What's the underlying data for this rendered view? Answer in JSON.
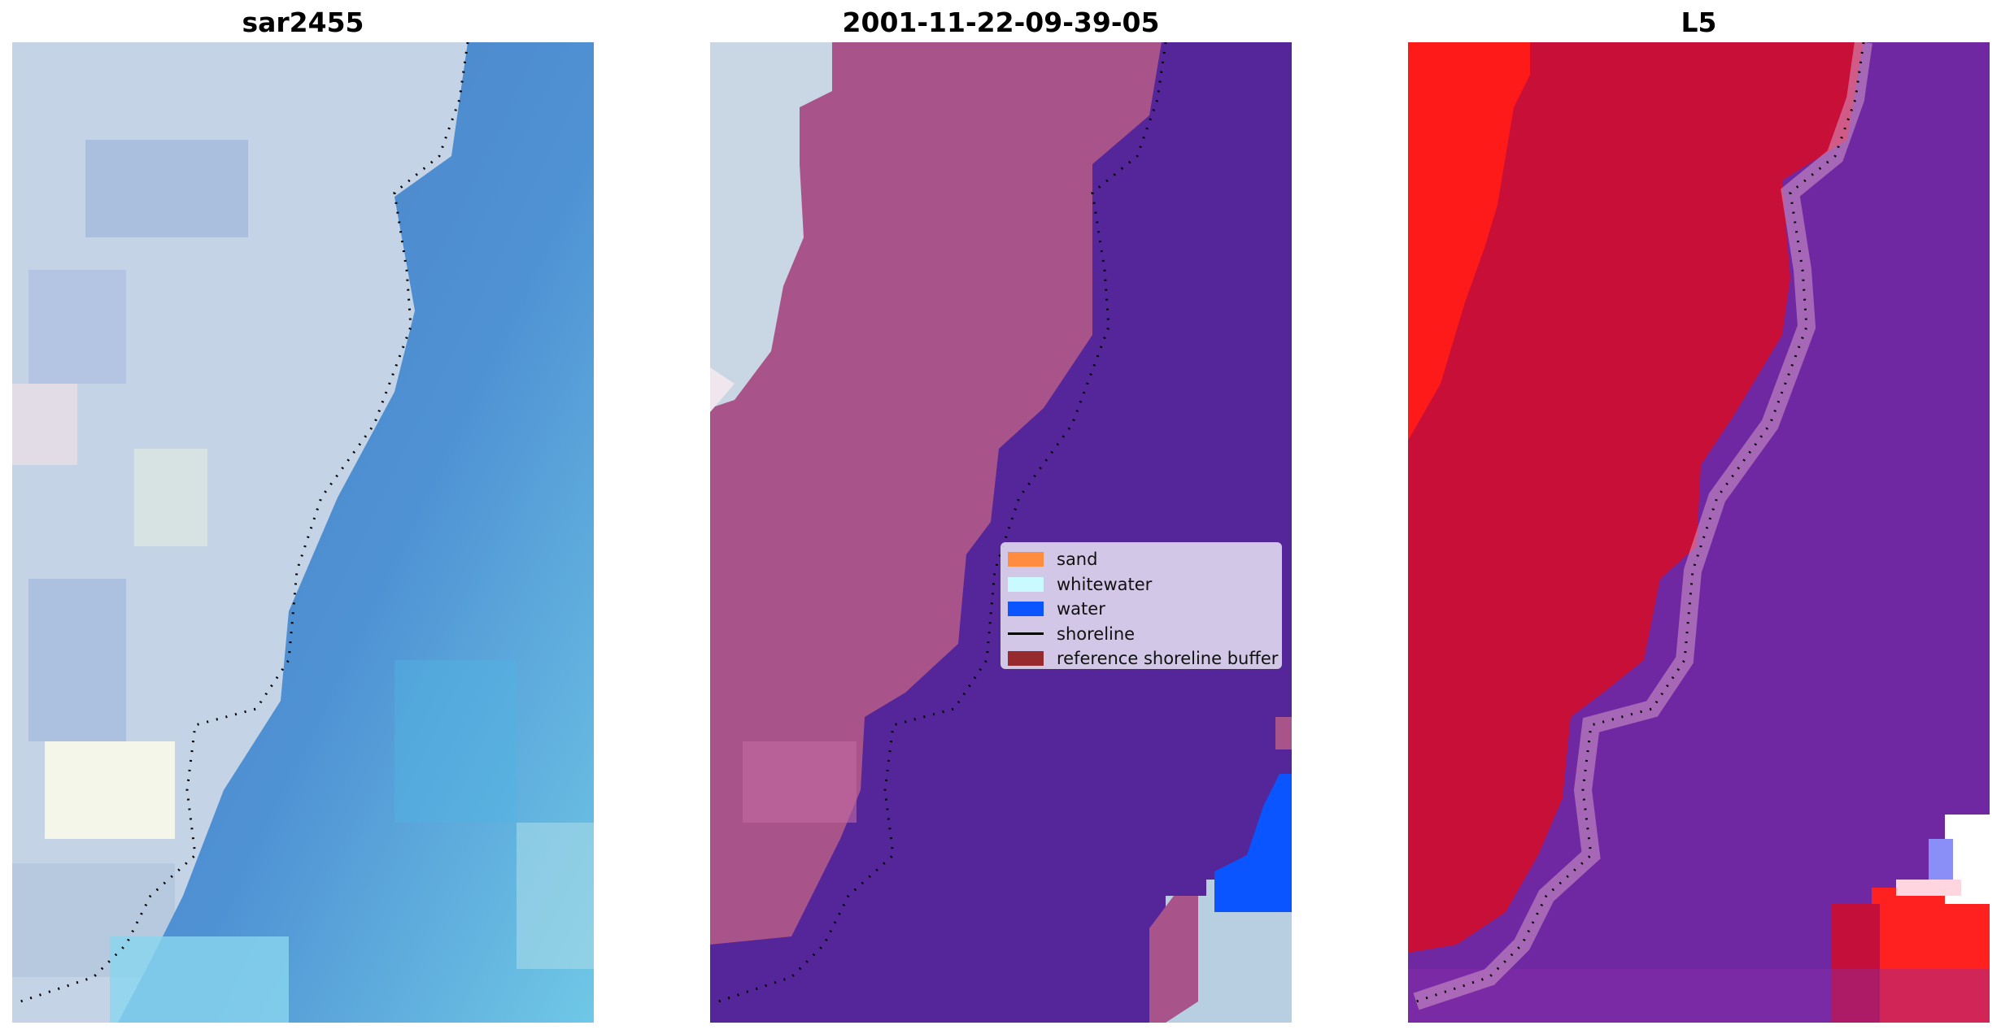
{
  "panels": [
    {
      "title": "sar2455"
    },
    {
      "title": "2001-11-22-09-39-05"
    },
    {
      "title": "L5"
    }
  ],
  "legend": {
    "items": [
      {
        "label": "sand",
        "color": "#ff8c3f"
      },
      {
        "label": "whitewater",
        "color": "#c8faff"
      },
      {
        "label": "water",
        "color": "#0a55ff"
      },
      {
        "label": "shoreline",
        "color": "#000000"
      },
      {
        "label": "reference shoreline buffer",
        "color": "#962a2d"
      }
    ]
  },
  "colors": {
    "land_rgb": "#c9d6e6",
    "water_rgb": "#4d8ed0",
    "class_land": "#a8548a",
    "class_water": "#55259a",
    "index_land": "#c80f37",
    "index_water": "#6f28a2"
  }
}
